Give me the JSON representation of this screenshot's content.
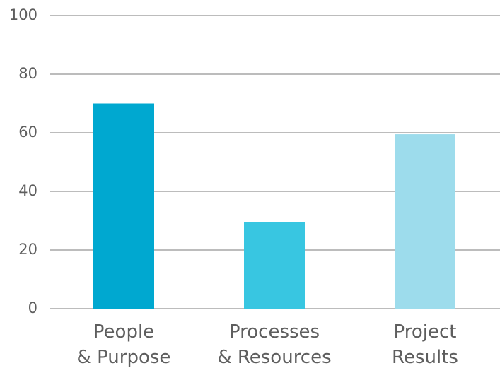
{
  "chart_data": {
    "type": "bar",
    "categories": [
      [
        "People",
        "& Purpose"
      ],
      [
        "Processes",
        "& Resources"
      ],
      [
        "Project",
        "Results"
      ]
    ],
    "values": [
      70,
      29.5,
      59.5
    ],
    "colors": [
      "#00a8d0",
      "#38c6e1",
      "#9ddcec"
    ],
    "ylim": [
      0,
      100
    ],
    "yticks": [
      0,
      20,
      40,
      60,
      80,
      100
    ],
    "grid": true,
    "xlabel": "",
    "ylabel": ""
  }
}
